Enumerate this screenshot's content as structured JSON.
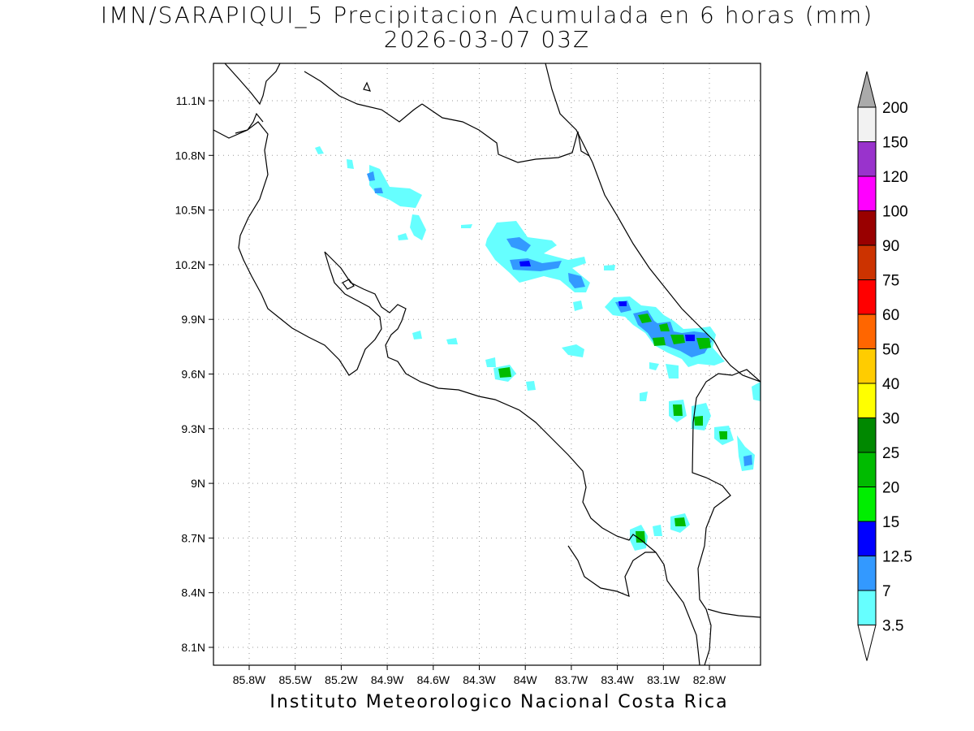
{
  "title": {
    "line1": "IMN/SARAPIQUI_5 Precipitacion Acumulada en 6 horas (mm)",
    "line2": "2026-03-07 03Z"
  },
  "footer": "Instituto Meteorologico Nacional Costa Rica",
  "axes": {
    "x_ticks": [
      "85.8W",
      "85.5W",
      "85.2W",
      "84.9W",
      "84.6W",
      "84.3W",
      "84W",
      "83.7W",
      "83.4W",
      "83.1W",
      "82.8W"
    ],
    "y_ticks": [
      "11.1N",
      "10.8N",
      "10.5N",
      "10.2N",
      "9.9N",
      "9.6N",
      "9.3N",
      "9N",
      "8.7N",
      "8.4N",
      "8.1N"
    ]
  },
  "colorbar": {
    "labels": [
      "3.5",
      "7",
      "12.5",
      "15",
      "20",
      "25",
      "30",
      "40",
      "50",
      "60",
      "75",
      "90",
      "100",
      "120",
      "150",
      "200"
    ],
    "colors": [
      "#ffffff",
      "#66ffff",
      "#3399ff",
      "#0000ff",
      "#00ee00",
      "#00bb00",
      "#008800",
      "#ffff00",
      "#ffcc00",
      "#ff6600",
      "#ff0000",
      "#cc3300",
      "#990000",
      "#ff00ff",
      "#9933cc",
      "#f2f2f2",
      "#aaaaaa"
    ]
  },
  "chart_data": {
    "type": "heatmap",
    "variable": "Precipitacion Acumulada en 6 horas (mm)",
    "grid": true,
    "cells": [
      {
        "lon": -84.65,
        "lat": 10.56,
        "level": "3.5-7"
      },
      {
        "lon": -84.85,
        "lat": 10.61,
        "level": "7-12.5"
      },
      {
        "lon": -84.05,
        "lat": 10.3,
        "level": "7-12.5"
      },
      {
        "lon": -84.0,
        "lat": 10.2,
        "level": "12.5-15"
      },
      {
        "lon": -83.85,
        "lat": 10.15,
        "level": "7-12.5"
      },
      {
        "lon": -83.4,
        "lat": 9.99,
        "level": "12.5-15"
      },
      {
        "lon": -83.2,
        "lat": 9.9,
        "level": "20-25"
      },
      {
        "lon": -83.1,
        "lat": 9.84,
        "level": "15-20"
      },
      {
        "lon": -83.05,
        "lat": 9.78,
        "level": "20-25"
      },
      {
        "lon": -82.95,
        "lat": 9.79,
        "level": "20-25"
      },
      {
        "lon": -82.85,
        "lat": 9.76,
        "level": "20-25"
      },
      {
        "lon": -84.13,
        "lat": 9.61,
        "level": "20-25"
      },
      {
        "lon": -83.03,
        "lat": 9.39,
        "level": "20-25"
      },
      {
        "lon": -82.93,
        "lat": 9.34,
        "level": "20-25"
      },
      {
        "lon": -82.77,
        "lat": 9.26,
        "level": "15-20"
      },
      {
        "lon": -83.27,
        "lat": 8.71,
        "level": "20-25"
      },
      {
        "lon": -83.03,
        "lat": 8.79,
        "level": "20-25"
      }
    ]
  }
}
